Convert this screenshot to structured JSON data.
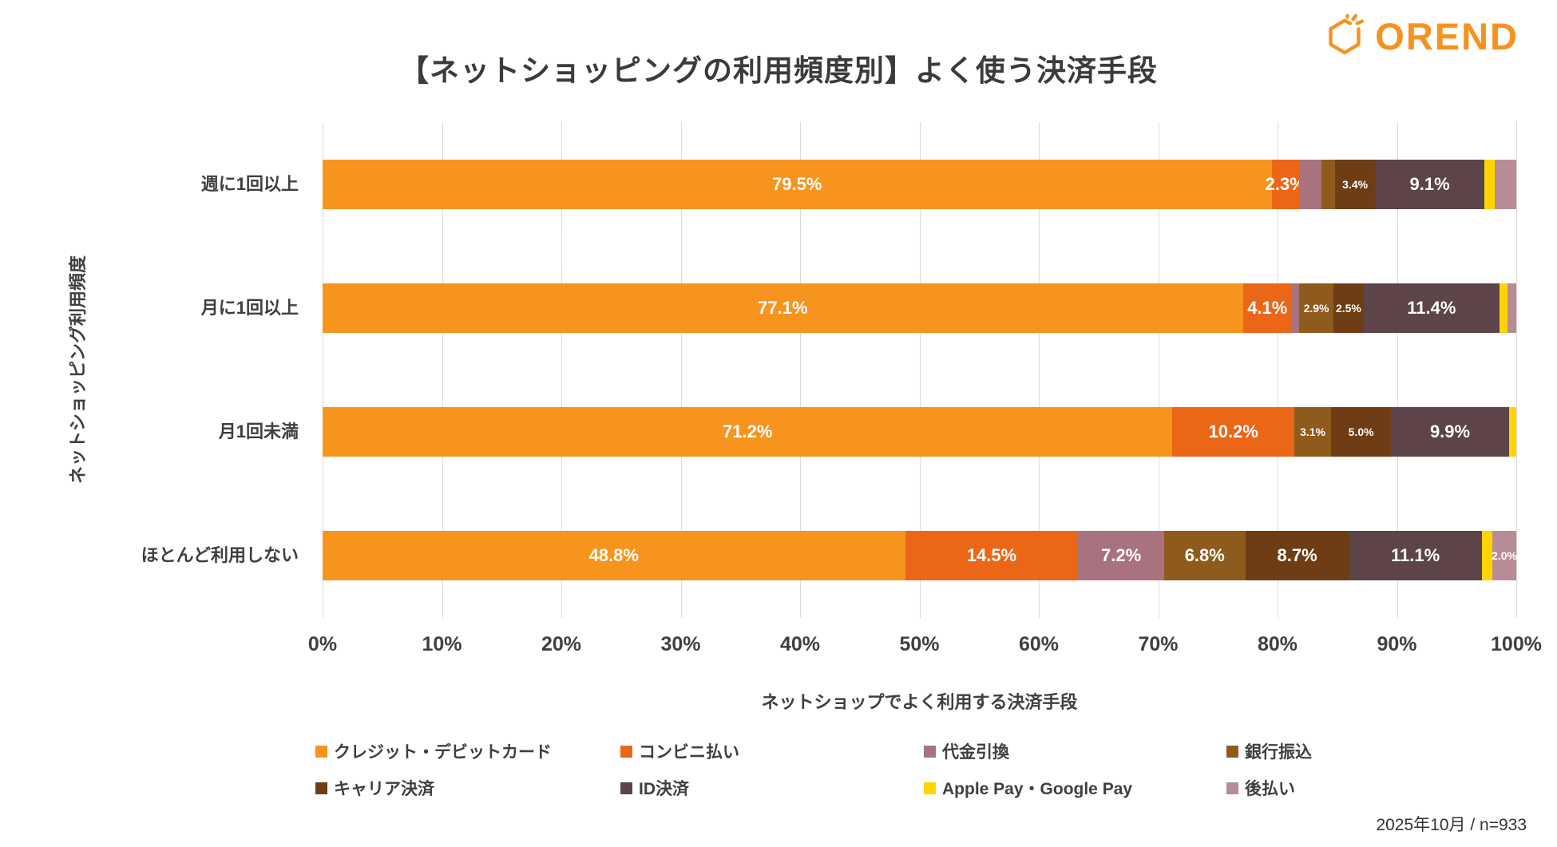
{
  "title": "【ネットショッピングの利用頻度別】よく使う決済手段",
  "logo": {
    "text": "OREND",
    "color": "#F6921E"
  },
  "footer": "2025年10月 / n=933",
  "chart_data": {
    "type": "bar",
    "stacked": true,
    "orientation": "horizontal",
    "title": "【ネットショッピングの利用頻度別】よく使う決済手段",
    "xlabel": "ネットショップでよく利用する決済手段",
    "ylabel": "ネットショッピング利用頻度",
    "xlim": [
      0,
      100
    ],
    "grid": "vertical",
    "legend_position": "bottom",
    "x_ticks": [
      "0%",
      "10%",
      "20%",
      "30%",
      "40%",
      "50%",
      "60%",
      "70%",
      "80%",
      "90%",
      "100%"
    ],
    "categories": [
      "週に1回以上",
      "月に1回以上",
      "月1回未満",
      "ほとんど利用しない"
    ],
    "series": [
      {
        "name": "クレジット・デビットカード",
        "color": "#F7941E",
        "values": [
          79.5,
          77.1,
          71.2,
          48.8
        ]
      },
      {
        "name": "コンビニ払い",
        "color": "#EC6618",
        "values": [
          2.3,
          4.1,
          10.2,
          14.5
        ]
      },
      {
        "name": "代金引換",
        "color": "#A8727E",
        "values": [
          1.9,
          0.6,
          0.0,
          7.2
        ]
      },
      {
        "name": "銀行振込",
        "color": "#8E5B1D",
        "values": [
          1.1,
          2.9,
          3.1,
          6.8
        ]
      },
      {
        "name": "キャリア決済",
        "color": "#6E3D15",
        "values": [
          3.4,
          2.5,
          5.0,
          8.7
        ]
      },
      {
        "name": "ID決済",
        "color": "#5C4448",
        "values": [
          9.1,
          11.4,
          9.9,
          11.1
        ]
      },
      {
        "name": "Apple Pay・Google Pay",
        "color": "#FFD400",
        "values": [
          0.9,
          0.7,
          0.6,
          0.9
        ]
      },
      {
        "name": "後払い",
        "color": "#B78C97",
        "values": [
          1.8,
          0.7,
          0.0,
          2.0
        ]
      }
    ],
    "data_label_format": "0.0%",
    "data_labels_shown": {
      "週に1回以上": [
        79.5,
        2.3,
        3.4,
        9.1
      ],
      "月に1回以上": [
        77.1,
        4.1,
        2.9,
        2.5,
        11.4
      ],
      "月1回未満": [
        71.2,
        10.2,
        3.1,
        5.0,
        9.9
      ],
      "ほとんど利用しない": [
        48.8,
        14.5,
        7.2,
        6.8,
        8.7,
        11.1
      ]
    }
  }
}
